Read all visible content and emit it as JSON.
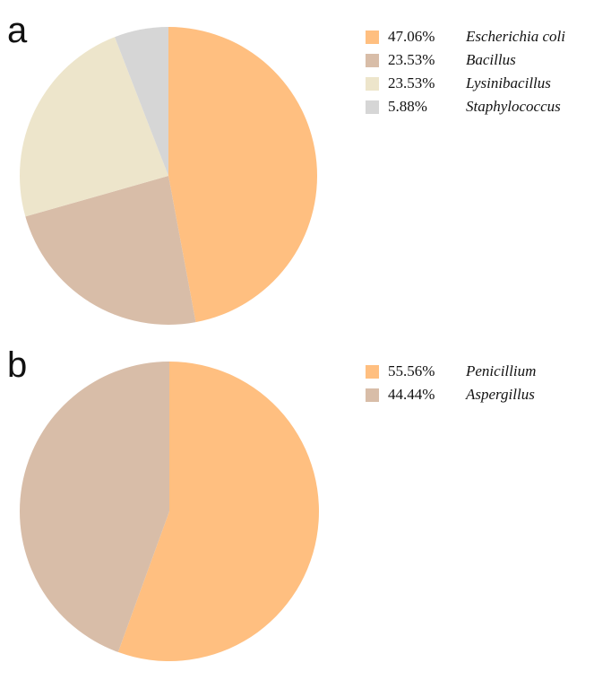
{
  "chart_data": [
    {
      "type": "pie",
      "panel": "a",
      "slices": [
        {
          "label": "Escherichia coli",
          "value": 47.06,
          "display": "47.06%",
          "color": "#FFBF80"
        },
        {
          "label": "Bacillus",
          "value": 23.53,
          "display": "23.53%",
          "color": "#D8BDA8"
        },
        {
          "label": "Lysinibacillus",
          "value": 23.53,
          "display": "23.53%",
          "color": "#EDE5CB"
        },
        {
          "label": "Staphylococcus",
          "value": 5.88,
          "display": "5.88%",
          "color": "#D6D6D6"
        }
      ],
      "legend_position": "right"
    },
    {
      "type": "pie",
      "panel": "b",
      "slices": [
        {
          "label": "Penicillium",
          "value": 55.56,
          "display": "55.56%",
          "color": "#FFBF80"
        },
        {
          "label": "Aspergillus",
          "value": 44.44,
          "display": "44.44%",
          "color": "#D8BDA8"
        }
      ],
      "legend_position": "right"
    }
  ]
}
